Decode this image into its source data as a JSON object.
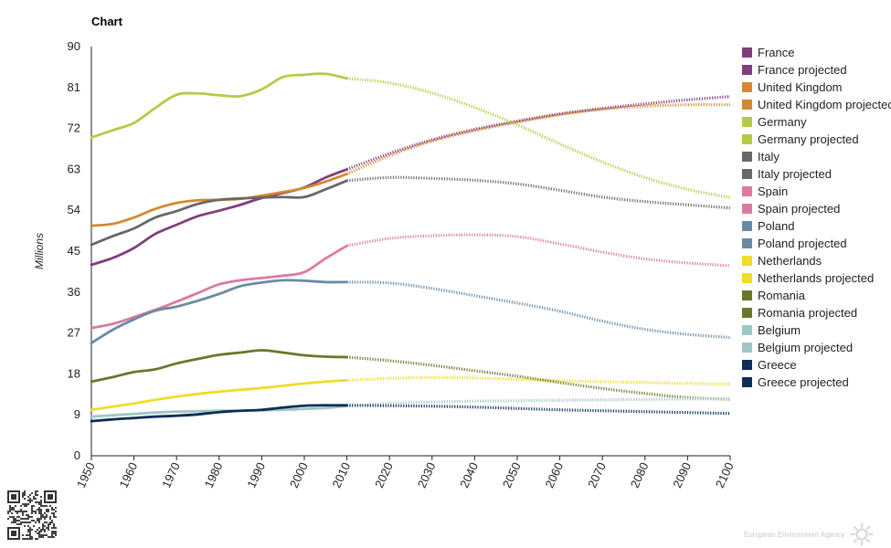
{
  "title": "Chart",
  "chart_data": {
    "type": "line",
    "title": "Chart",
    "ylabel": "Millions",
    "xlabel": "",
    "xlim": [
      1950,
      2100
    ],
    "ylim": [
      0,
      90
    ],
    "x_ticks": [
      "1950",
      "1960",
      "1970",
      "1980",
      "1990",
      "2000",
      "2010",
      "2020",
      "2030",
      "2040",
      "2050",
      "2060",
      "2070",
      "2080",
      "2090",
      "2100"
    ],
    "y_ticks": [
      "0",
      "9",
      "18",
      "27",
      "36",
      "45",
      "54",
      "63",
      "72",
      "81",
      "90"
    ],
    "legend_position": "right",
    "grid": false,
    "series": [
      {
        "name": "France",
        "color": "#7f3f7c",
        "style": "solid",
        "x": [
          1950,
          1955,
          1960,
          1965,
          1970,
          1975,
          1980,
          1985,
          1990,
          1995,
          2000,
          2005,
          2010
        ],
        "y": [
          42,
          43.5,
          45.7,
          48.8,
          50.8,
          52.7,
          53.9,
          55.2,
          56.7,
          57.8,
          59,
          61.2,
          63
        ]
      },
      {
        "name": "France projected",
        "color": "#7f3f7c",
        "style": "dotted",
        "x": [
          2010,
          2020,
          2030,
          2040,
          2050,
          2060,
          2070,
          2080,
          2090,
          2100
        ],
        "y": [
          63,
          66.5,
          69.5,
          71.8,
          73.6,
          75.2,
          76.4,
          77.4,
          78.3,
          79
        ]
      },
      {
        "name": "United Kingdom",
        "color": "#d4892f",
        "style": "solid",
        "x": [
          1950,
          1955,
          1960,
          1965,
          1970,
          1975,
          1980,
          1985,
          1990,
          1995,
          2000,
          2005,
          2010
        ],
        "y": [
          50.6,
          51,
          52.4,
          54.3,
          55.6,
          56.2,
          56.3,
          56.5,
          57.2,
          58,
          58.9,
          60.3,
          62
        ]
      },
      {
        "name": "United Kingdom projected",
        "color": "#d4892f",
        "style": "dotted",
        "x": [
          2010,
          2020,
          2030,
          2040,
          2050,
          2060,
          2070,
          2080,
          2090,
          2100
        ],
        "y": [
          62,
          66,
          69.2,
          71.5,
          73.4,
          75,
          76.2,
          76.9,
          77.2,
          77.2
        ]
      },
      {
        "name": "Germany",
        "color": "#b5cb48",
        "style": "solid",
        "x": [
          1950,
          1955,
          1960,
          1965,
          1970,
          1975,
          1980,
          1985,
          1990,
          1995,
          2000,
          2005,
          2010
        ],
        "y": [
          70,
          71.6,
          73.2,
          76.5,
          79.4,
          79.7,
          79.3,
          79.1,
          80.6,
          83.3,
          83.8,
          84,
          83
        ]
      },
      {
        "name": "Germany projected",
        "color": "#b5cb48",
        "style": "dotted",
        "x": [
          2010,
          2020,
          2030,
          2040,
          2050,
          2060,
          2070,
          2080,
          2090,
          2100
        ],
        "y": [
          83,
          82,
          79.8,
          76.6,
          72.8,
          68.6,
          64.6,
          61.2,
          58.6,
          56.8
        ]
      },
      {
        "name": "Italy",
        "color": "#686868",
        "style": "solid",
        "x": [
          1950,
          1955,
          1960,
          1965,
          1970,
          1975,
          1980,
          1985,
          1990,
          1995,
          2000,
          2005,
          2010
        ],
        "y": [
          46.4,
          48.3,
          50,
          52.4,
          53.8,
          55.4,
          56.3,
          56.6,
          56.8,
          56.9,
          56.9,
          58.6,
          60.5
        ]
      },
      {
        "name": "Italy projected",
        "color": "#686868",
        "style": "dotted",
        "x": [
          2010,
          2020,
          2030,
          2040,
          2050,
          2060,
          2070,
          2080,
          2090,
          2100
        ],
        "y": [
          60.5,
          61.2,
          61,
          60.6,
          59.8,
          58.4,
          56.9,
          55.9,
          55.2,
          54.5
        ]
      },
      {
        "name": "Spain",
        "color": "#db7b9f",
        "style": "solid",
        "x": [
          1950,
          1955,
          1960,
          1965,
          1970,
          1975,
          1980,
          1985,
          1990,
          1995,
          2000,
          2005,
          2010
        ],
        "y": [
          28.1,
          29,
          30.5,
          32.1,
          33.9,
          35.8,
          37.7,
          38.6,
          39.1,
          39.6,
          40.4,
          43.4,
          46.2
        ]
      },
      {
        "name": "Spain projected",
        "color": "#db7b9f",
        "style": "dotted",
        "x": [
          2010,
          2020,
          2030,
          2040,
          2050,
          2060,
          2070,
          2080,
          2090,
          2100
        ],
        "y": [
          46.2,
          47.8,
          48.4,
          48.6,
          48.2,
          46.6,
          44.8,
          43.3,
          42.4,
          41.8
        ]
      },
      {
        "name": "Poland",
        "color": "#6a8aa4",
        "style": "solid",
        "x": [
          1950,
          1955,
          1960,
          1965,
          1970,
          1975,
          1980,
          1985,
          1990,
          1995,
          2000,
          2005,
          2010
        ],
        "y": [
          24.8,
          27.7,
          30,
          31.9,
          32.8,
          34.1,
          35.6,
          37.3,
          38.1,
          38.6,
          38.5,
          38.2,
          38.2
        ]
      },
      {
        "name": "Poland projected",
        "color": "#6a8aa4",
        "style": "dotted",
        "x": [
          2010,
          2020,
          2030,
          2040,
          2050,
          2060,
          2070,
          2080,
          2090,
          2100
        ],
        "y": [
          38.2,
          38,
          36.8,
          35.2,
          33.6,
          31.8,
          29.6,
          27.8,
          26.7,
          26
        ]
      },
      {
        "name": "Netherlands",
        "color": "#eedd29",
        "style": "solid",
        "x": [
          1950,
          1955,
          1960,
          1965,
          1970,
          1975,
          1980,
          1985,
          1990,
          1995,
          2000,
          2005,
          2010
        ],
        "y": [
          10.1,
          10.8,
          11.5,
          12.3,
          13,
          13.6,
          14.1,
          14.5,
          14.9,
          15.4,
          15.9,
          16.3,
          16.6
        ]
      },
      {
        "name": "Netherlands projected",
        "color": "#eedd29",
        "style": "dotted",
        "x": [
          2010,
          2020,
          2030,
          2040,
          2050,
          2060,
          2070,
          2080,
          2090,
          2100
        ],
        "y": [
          16.6,
          17,
          17.2,
          17.1,
          16.8,
          16.5,
          16.3,
          16.1,
          15.9,
          15.8
        ]
      },
      {
        "name": "Romania",
        "color": "#6a772a",
        "style": "solid",
        "x": [
          1950,
          1955,
          1960,
          1965,
          1970,
          1975,
          1980,
          1985,
          1990,
          1995,
          2000,
          2005,
          2010
        ],
        "y": [
          16.3,
          17.3,
          18.4,
          19,
          20.3,
          21.3,
          22.2,
          22.7,
          23.2,
          22.7,
          22.1,
          21.8,
          21.7
        ]
      },
      {
        "name": "Romania projected",
        "color": "#6a772a",
        "style": "dotted",
        "x": [
          2010,
          2020,
          2030,
          2040,
          2050,
          2060,
          2070,
          2080,
          2090,
          2100
        ],
        "y": [
          21.7,
          20.9,
          19.9,
          18.7,
          17.5,
          16.1,
          14.8,
          13.7,
          12.8,
          12.4
        ]
      },
      {
        "name": "Belgium",
        "color": "#9cc8c4",
        "style": "solid",
        "x": [
          1950,
          1955,
          1960,
          1965,
          1970,
          1975,
          1980,
          1985,
          1990,
          1995,
          2000,
          2005,
          2010
        ],
        "y": [
          8.6,
          8.9,
          9.2,
          9.5,
          9.7,
          9.8,
          9.9,
          9.9,
          10,
          10.1,
          10.3,
          10.5,
          10.9
        ]
      },
      {
        "name": "Belgium projected",
        "color": "#9cc8c4",
        "style": "dotted",
        "x": [
          2010,
          2020,
          2030,
          2040,
          2050,
          2060,
          2070,
          2080,
          2090,
          2100
        ],
        "y": [
          10.9,
          11.5,
          11.8,
          12,
          12.1,
          12.2,
          12.3,
          12.4,
          12.5,
          12.5
        ]
      },
      {
        "name": "Greece",
        "color": "#0e2d57",
        "style": "solid",
        "x": [
          1950,
          1955,
          1960,
          1965,
          1970,
          1975,
          1980,
          1985,
          1990,
          1995,
          2000,
          2005,
          2010
        ],
        "y": [
          7.6,
          8,
          8.3,
          8.6,
          8.8,
          9.1,
          9.6,
          9.9,
          10.1,
          10.6,
          11,
          11.1,
          11.1
        ]
      },
      {
        "name": "Greece projected",
        "color": "#0e2d57",
        "style": "dotted",
        "x": [
          2010,
          2020,
          2030,
          2040,
          2050,
          2060,
          2070,
          2080,
          2090,
          2100
        ],
        "y": [
          11.1,
          11,
          10.9,
          10.7,
          10.4,
          10.1,
          9.9,
          9.7,
          9.5,
          9.3
        ]
      }
    ]
  },
  "footer": {
    "logo_text": "European Environment Agency"
  }
}
